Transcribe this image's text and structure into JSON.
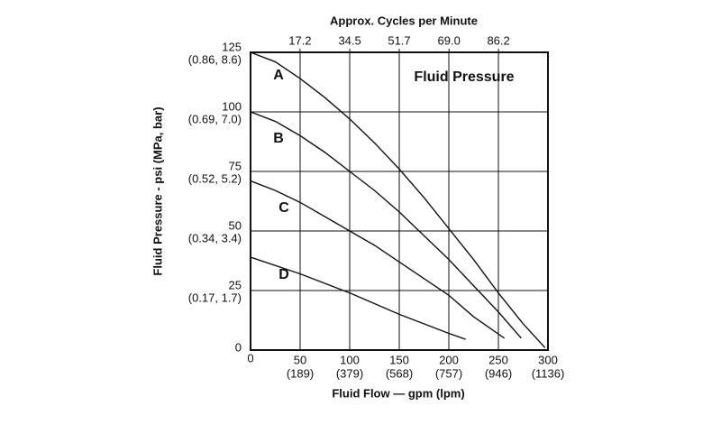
{
  "chart_data": {
    "type": "line",
    "title": "Approx. Cycles per Minute",
    "annotation": "Fluid Pressure",
    "x_label": "Fluid Flow — gpm (lpm)",
    "y_label": "Fluid Pressure - psi (MPa, bar)",
    "xlim": [
      0,
      300
    ],
    "xticks": [
      0,
      {
        "value": 50,
        "label": "50",
        "sublabel": "(189)"
      },
      {
        "value": 100,
        "label": "100",
        "sublabel": "(379)"
      },
      {
        "value": 150,
        "label": "150",
        "sublabel": "(568)"
      },
      {
        "value": 200,
        "label": "200",
        "sublabel": "(757)"
      },
      {
        "value": 250,
        "label": "250",
        "sublabel": "(946)"
      },
      {
        "value": 300,
        "label": "300",
        "sublabel": "(1136)"
      }
    ],
    "x2lim": [
      0,
      103.4
    ],
    "x2ticks": [
      17.2,
      34.5,
      51.7,
      {
        "value": 69.0,
        "label": "69.0"
      },
      86.2
    ],
    "ylim": [
      0,
      125
    ],
    "yticks": [
      0,
      {
        "value": 25,
        "label": "25",
        "sublabel": "(0.17, 1.7)"
      },
      {
        "value": 50,
        "label": "50",
        "sublabel": "(0.34, 3.4)"
      },
      {
        "value": 75,
        "label": "75",
        "sublabel": "(0.52, 5.2)"
      },
      {
        "value": 100,
        "label": "100",
        "sublabel": "(0.69, 7.0)"
      },
      {
        "value": 125,
        "label": "125",
        "sublabel": "(0.86, 8.6)"
      }
    ],
    "grid": true,
    "series": [
      {
        "name": "A",
        "color": "#111111",
        "x": [
          0,
          25,
          50,
          75,
          100,
          125,
          150,
          175,
          200,
          225,
          250,
          275,
          297
        ],
        "values": [
          125,
          121,
          114,
          106,
          97,
          87,
          76,
          64,
          51,
          38,
          24,
          11,
          1
        ]
      },
      {
        "name": "B",
        "color": "#111111",
        "x": [
          0,
          25,
          50,
          75,
          100,
          125,
          150,
          175,
          200,
          225,
          250,
          273
        ],
        "values": [
          100,
          96,
          90,
          83,
          75,
          67,
          58,
          48,
          38,
          27,
          16,
          5
        ]
      },
      {
        "name": "C",
        "color": "#111111",
        "x": [
          0,
          25,
          50,
          75,
          100,
          125,
          150,
          175,
          200,
          225,
          256
        ],
        "values": [
          71,
          67,
          62,
          56,
          50,
          44,
          37,
          30,
          23,
          14,
          5
        ]
      },
      {
        "name": "D",
        "color": "#111111",
        "x": [
          0,
          50,
          100,
          150,
          200,
          217
        ],
        "values": [
          39,
          32,
          24,
          15,
          7,
          4.5
        ]
      }
    ]
  }
}
